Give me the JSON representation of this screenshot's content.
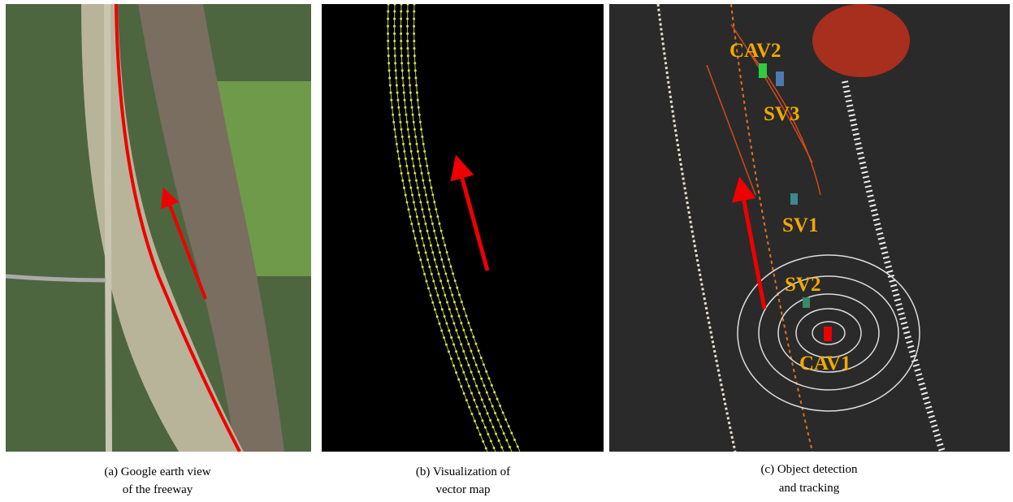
{
  "panels": [
    {
      "caption": [
        "(a) Google earth view",
        "of the freeway"
      ]
    },
    {
      "caption": [
        "(b) Visualization of",
        "vector map"
      ]
    },
    {
      "caption": [
        "(c) Object detection",
        "and tracking"
      ],
      "labels": [
        "CAV2",
        "SV3",
        "SV1",
        "SV2",
        "CAV1"
      ]
    }
  ]
}
